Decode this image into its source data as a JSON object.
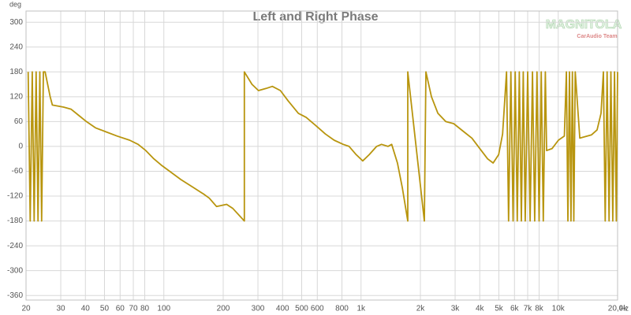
{
  "chart_data": {
    "type": "line",
    "title": "Left and Right Phase",
    "y_label": "deg",
    "x_label": "Hz",
    "watermark": {
      "logo": "MAGNITOLA",
      "tagline": "CarAudio Team"
    },
    "log_x": true,
    "grid": true,
    "color": "#b8950e",
    "xlim": [
      20,
      20000
    ],
    "ylim": [
      -371,
      327
    ],
    "xticks": [
      20,
      30,
      40,
      50,
      60,
      70,
      80,
      100,
      200,
      300,
      400,
      500,
      600,
      800,
      {
        "value": 1000,
        "label": "1k"
      },
      {
        "value": 2000,
        "label": "2k"
      },
      {
        "value": 3000,
        "label": "3k"
      },
      {
        "value": 4000,
        "label": "4k"
      },
      {
        "value": 5000,
        "label": "5k"
      },
      {
        "value": 6000,
        "label": "6k"
      },
      {
        "value": 7000,
        "label": "7k"
      },
      {
        "value": 8000,
        "label": "8k"
      },
      {
        "value": 10000,
        "label": "10k"
      },
      {
        "value": 20000,
        "label": "20,0k"
      }
    ],
    "yticks": [
      300,
      240,
      180,
      120,
      60,
      0,
      -60,
      -120,
      -180,
      -240,
      -300,
      -360
    ],
    "x": [
      20.5,
      21,
      21.5,
      22,
      22.5,
      23,
      23.5,
      24,
      24.5,
      25,
      26.5,
      27.2,
      31,
      33.8,
      37,
      40.5,
      45,
      51,
      58,
      67,
      74,
      81,
      89,
      97,
      107,
      122,
      142,
      159,
      170,
      185,
      208,
      224,
      256,
      256,
      280,
      302,
      330,
      355,
      390,
      427,
      481,
      527,
      590,
      660,
      730,
      812,
      870,
      945,
      1020,
      1100,
      1200,
      1270,
      1370,
      1430,
      1530,
      1620,
      1726,
      1726,
      2094,
      2133,
      2275,
      2454,
      2690,
      2949,
      3327,
      3648,
      4073,
      4385,
      4677,
      4989,
      5223,
      5470,
      5600,
      5750,
      5900,
      6050,
      6200,
      6350,
      6500,
      6650,
      6800,
      7000,
      7200,
      7400,
      7600,
      7800,
      8000,
      8200,
      8400,
      8600,
      8730,
      9310,
      10020,
      10740,
      11000,
      11200,
      11400,
      11600,
      11800,
      12000,
      12200,
      12870,
      14760,
      15740,
      16480,
      16950,
      17300,
      17700,
      18100,
      18500,
      18900,
      19300,
      19700,
      20000
    ],
    "values": [
      180,
      -180,
      180,
      -180,
      180,
      -180,
      180,
      -180,
      180,
      180,
      120,
      100,
      95,
      90,
      75,
      60,
      45,
      35,
      25,
      15,
      5,
      -10,
      -30,
      -45,
      -60,
      -80,
      -100,
      -115,
      -125,
      -145,
      -140,
      -150,
      -180,
      180,
      150,
      135,
      140,
      145,
      135,
      110,
      80,
      70,
      50,
      30,
      15,
      5,
      0,
      -20,
      -35,
      -20,
      0,
      5,
      0,
      5,
      -40,
      -100,
      -180,
      180,
      -180,
      180,
      120,
      80,
      60,
      55,
      35,
      20,
      -10,
      -30,
      -40,
      -20,
      30,
      180,
      -180,
      180,
      -180,
      180,
      -180,
      180,
      -180,
      180,
      -180,
      180,
      -180,
      180,
      -180,
      180,
      -180,
      180,
      -180,
      180,
      -10,
      -5,
      15,
      25,
      180,
      -180,
      180,
      -180,
      180,
      -180,
      180,
      20,
      28,
      40,
      80,
      180,
      -180,
      180,
      -180,
      180,
      -180,
      180,
      -180,
      180
    ]
  }
}
